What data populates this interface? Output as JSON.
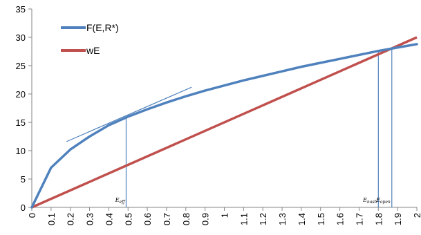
{
  "chart_data": {
    "type": "line",
    "title": "",
    "xlabel": "",
    "ylabel": "",
    "xlim": [
      0,
      2
    ],
    "ylim": [
      0,
      35
    ],
    "grid": false,
    "legend_position": "top-left",
    "x_ticks": [
      "0",
      "0.1",
      "0.2",
      "0.3",
      "0.4",
      "0.5",
      "0.6",
      "0.7",
      "0.8",
      "0.9",
      "1",
      "1.1",
      "1.2",
      "1.3",
      "1.4",
      "1.5",
      "1.6",
      "1.7",
      "1.8",
      "1.9",
      "2"
    ],
    "y_ticks": [
      "0",
      "5",
      "10",
      "15",
      "20",
      "25",
      "30",
      "35"
    ],
    "series": [
      {
        "name": "F(E,R*)",
        "color": "#4F81BD",
        "x": [
          0,
          0.1,
          0.2,
          0.3,
          0.4,
          0.5,
          0.6,
          0.7,
          0.8,
          0.9,
          1.0,
          1.1,
          1.2,
          1.3,
          1.4,
          1.5,
          1.6,
          1.7,
          1.8,
          1.9,
          2.0
        ],
        "values": [
          0,
          7.0,
          10.2,
          12.5,
          14.5,
          16.0,
          17.3,
          18.5,
          19.6,
          20.6,
          21.5,
          22.4,
          23.2,
          24.0,
          24.8,
          25.5,
          26.2,
          26.9,
          27.6,
          28.2,
          28.8
        ]
      },
      {
        "name": "wE",
        "color": "#C0504D",
        "x": [
          0,
          2
        ],
        "values": [
          0,
          30
        ]
      }
    ],
    "tangent_line": {
      "color": "#4F81BD",
      "x": [
        0.18,
        0.83
      ],
      "values": [
        11.6,
        21.2
      ]
    },
    "annotations": [
      {
        "label": "E_eff",
        "base": "E",
        "sub": "eff",
        "x": 0.49,
        "y_top": 15.8
      },
      {
        "label": "E_nash",
        "base": "E",
        "sub": "nash",
        "x": 1.8,
        "y_top": 27.5
      },
      {
        "label": "E_open",
        "base": "E",
        "sub": "open",
        "x": 1.87,
        "y_top": 28.0
      }
    ]
  }
}
